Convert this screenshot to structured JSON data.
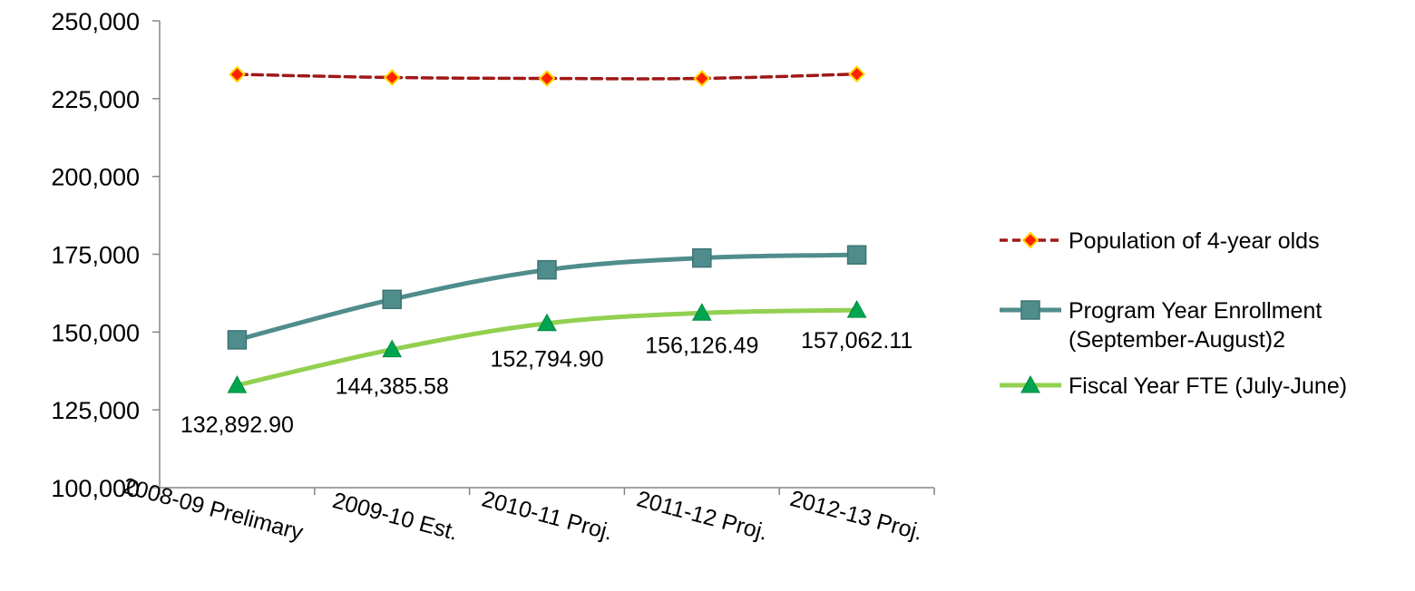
{
  "chart_data": {
    "type": "line",
    "categories": [
      "2008-09 Prelimary",
      "2009-10 Est.",
      "2010-11 Proj.",
      "2011-12 Proj.",
      "2012-13 Proj."
    ],
    "ylim": [
      100000,
      250000
    ],
    "yticks": [
      100000,
      125000,
      150000,
      175000,
      200000,
      225000,
      250000
    ],
    "ytick_labels": [
      "100,000",
      "125,000",
      "150,000",
      "175,000",
      "200,000",
      "225,000",
      "250,000"
    ],
    "grid": false,
    "legend_position": "right",
    "series": [
      {
        "name": "Population of 4-year olds",
        "values": [
          232800,
          231800,
          231500,
          231500,
          232900
        ],
        "color": "#a01818",
        "marker_color": "#ff2200",
        "marker_stroke": "#ffd700",
        "marker": "diamond",
        "dashed": true
      },
      {
        "name": "Program Year Enrollment (September-August)2",
        "legend_lines": [
          "Program Year Enrollment",
          "(September-August)2"
        ],
        "values": [
          147500,
          160500,
          170000,
          173800,
          174800
        ],
        "color": "#4f8d8c",
        "marker_color": "#4f8d8c",
        "marker": "square",
        "dashed": false
      },
      {
        "name": "Fiscal Year FTE (July-June)",
        "values": [
          132892.9,
          144385.58,
          152794.9,
          156126.49,
          157062.11
        ],
        "data_labels": [
          "132,892.90",
          "144,385.58",
          "152,794.90",
          "156,126.49",
          "157,062.11"
        ],
        "color": "#92d050",
        "marker_color": "#00a550",
        "marker": "triangle",
        "dashed": false
      }
    ]
  }
}
